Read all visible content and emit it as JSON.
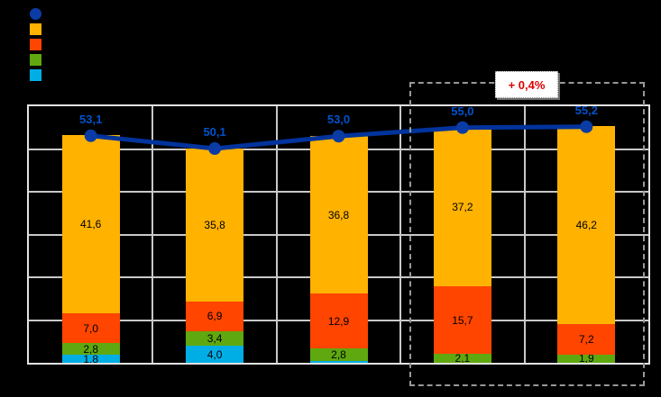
{
  "legend": {
    "position": "top-left",
    "items": [
      {
        "icon": "line-series-marker-icon",
        "shape": "circle",
        "color": "#0B3BA5",
        "label": ""
      },
      {
        "icon": "orange-series-swatch-icon",
        "shape": "square",
        "color": "#FFB200",
        "label": ""
      },
      {
        "icon": "orangered-series-swatch-icon",
        "shape": "square",
        "color": "#FF4500",
        "label": ""
      },
      {
        "icon": "green-series-swatch-icon",
        "shape": "square",
        "color": "#5FA80F",
        "label": ""
      },
      {
        "icon": "lightblue-series-swatch-icon",
        "shape": "square",
        "color": "#00AEE6",
        "label": ""
      }
    ]
  },
  "annotation": {
    "text": "+ 0,4%",
    "text_color": "#DD0000",
    "box_color": "#FFFFFF",
    "highlighted_categories": [
      3,
      4
    ]
  },
  "chart_data": {
    "type": "bar",
    "subtype": "stacked-bars-with-total-line",
    "title": "",
    "xlabel": "",
    "ylabel": "",
    "categories": [
      "",
      "",
      "",
      "",
      ""
    ],
    "ylim": [
      0,
      60
    ],
    "grid_step": 10,
    "grid": true,
    "legend_position": "top-left",
    "colors": {
      "background": "#000000",
      "gridline": "#C9C9C9",
      "plot_border": "#E3E3E3",
      "line": "#00339B",
      "line_label": "#0052CC",
      "segment_label": "#000000",
      "highlight_border": "#989898"
    },
    "series": [
      {
        "name": "lightblue",
        "color": "#00AEE6",
        "values": [
          1.8,
          4.0,
          0.5,
          0,
          0
        ],
        "labels": [
          "1,8",
          "4,0",
          "",
          "",
          ""
        ]
      },
      {
        "name": "green",
        "color": "#5FA80F",
        "values": [
          2.8,
          3.4,
          2.8,
          2.1,
          1.9
        ],
        "labels": [
          "2,8",
          "3,4",
          "2,8",
          "2,1",
          "1,9"
        ]
      },
      {
        "name": "orangered",
        "color": "#FF4500",
        "values": [
          7.0,
          6.9,
          12.9,
          15.7,
          7.2
        ],
        "labels": [
          "7,0",
          "6,9",
          "12,9",
          "15,7",
          "7,2"
        ]
      },
      {
        "name": "orange",
        "color": "#FFB200",
        "values": [
          41.6,
          35.8,
          36.8,
          37.2,
          46.2
        ],
        "labels": [
          "41,6",
          "35,8",
          "36,8",
          "37,2",
          "46,2"
        ]
      }
    ],
    "line": {
      "name": "total-line",
      "color": "#00339B",
      "marker_color": "#0B3BA5",
      "values": [
        53.1,
        50.1,
        53.0,
        55.0,
        55.2
      ],
      "labels": [
        "53,1",
        "50,1",
        "53,0",
        "55,0",
        "55,2"
      ]
    }
  }
}
